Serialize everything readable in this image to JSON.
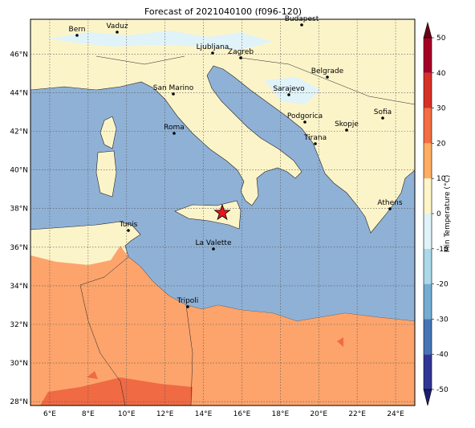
{
  "title": "Forecast of 2021040100 (f096-120)",
  "map": {
    "xlim": [
      5,
      25
    ],
    "ylim": [
      27.8,
      47.8
    ],
    "lon_ticks": [
      {
        "value": 6,
        "label": "6°E"
      },
      {
        "value": 8,
        "label": "8°E"
      },
      {
        "value": 10,
        "label": "10°E"
      },
      {
        "value": 12,
        "label": "12°E"
      },
      {
        "value": 14,
        "label": "14°E"
      },
      {
        "value": 16,
        "label": "16°E"
      },
      {
        "value": 18,
        "label": "18°E"
      },
      {
        "value": 20,
        "label": "20°E"
      },
      {
        "value": 22,
        "label": "22°E"
      },
      {
        "value": 24,
        "label": "24°E"
      }
    ],
    "lat_ticks": [
      {
        "value": 28,
        "label": "28°N"
      },
      {
        "value": 30,
        "label": "30°N"
      },
      {
        "value": 32,
        "label": "32°N"
      },
      {
        "value": 34,
        "label": "34°N"
      },
      {
        "value": 36,
        "label": "36°N"
      },
      {
        "value": 38,
        "label": "38°N"
      },
      {
        "value": 40,
        "label": "40°N"
      },
      {
        "value": 42,
        "label": "42°N"
      },
      {
        "value": 44,
        "label": "44°N"
      },
      {
        "value": 46,
        "label": "46°N"
      }
    ],
    "grid": true,
    "cities": [
      "Bern",
      "Vaduz",
      "Ljubljana",
      "Zagreb",
      "Budapest",
      "Belgrade",
      "Sarajevo",
      "San Marino",
      "Roma",
      "Podgorica",
      "Skopje",
      "Sofia",
      "Tirana",
      "Athens",
      "Tunis",
      "La Valette",
      "Tripoli"
    ]
  },
  "colorbar": {
    "label": "Min Temperature (°C)",
    "ticks": [
      -50,
      -40,
      -30,
      -20,
      -10,
      0,
      10,
      20,
      30,
      40,
      50
    ],
    "colors": [
      "#313695",
      "#4575b4",
      "#74add1",
      "#abd9e9",
      "#e0f3f8",
      "#fef6c8",
      "#fdae61",
      "#f46d43",
      "#d73027",
      "#a50026"
    ],
    "under_color": "#1b1d6e",
    "over_color": "#6b0017"
  }
}
